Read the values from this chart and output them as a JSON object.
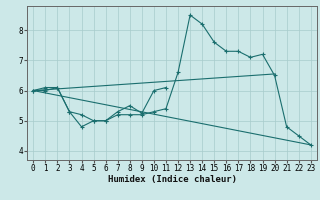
{
  "xlabel": "Humidex (Indice chaleur)",
  "xlim": [
    -0.5,
    23.5
  ],
  "ylim": [
    3.7,
    8.8
  ],
  "xticks": [
    0,
    1,
    2,
    3,
    4,
    5,
    6,
    7,
    8,
    9,
    10,
    11,
    12,
    13,
    14,
    15,
    16,
    17,
    18,
    19,
    20,
    21,
    22,
    23
  ],
  "yticks": [
    4,
    5,
    6,
    7,
    8
  ],
  "bg_color": "#cce8e8",
  "grid_color": "#a8cccc",
  "line_color": "#1a6e6e",
  "lines": [
    {
      "x": [
        0,
        1,
        2,
        3,
        4,
        5,
        6,
        7,
        8,
        9,
        10,
        11,
        12,
        13,
        14,
        15,
        16,
        17,
        18,
        19,
        20,
        21,
        22,
        23
      ],
      "y": [
        6.0,
        6.1,
        6.1,
        5.3,
        5.2,
        5.0,
        5.0,
        5.2,
        5.2,
        5.2,
        5.3,
        5.4,
        6.6,
        8.5,
        8.2,
        7.6,
        7.3,
        7.3,
        7.1,
        7.2,
        6.5,
        4.8,
        4.5,
        4.2
      ],
      "has_markers": true
    },
    {
      "x": [
        0,
        1,
        2,
        3,
        4,
        5,
        6,
        7,
        8,
        9,
        10,
        11
      ],
      "y": [
        6.0,
        6.0,
        6.1,
        5.3,
        4.8,
        5.0,
        5.0,
        5.3,
        5.5,
        5.25,
        6.0,
        6.1
      ],
      "has_markers": true
    },
    {
      "x": [
        0,
        23
      ],
      "y": [
        6.0,
        4.2
      ],
      "has_markers": false
    },
    {
      "x": [
        0,
        20
      ],
      "y": [
        6.0,
        6.55
      ],
      "has_markers": false
    }
  ]
}
